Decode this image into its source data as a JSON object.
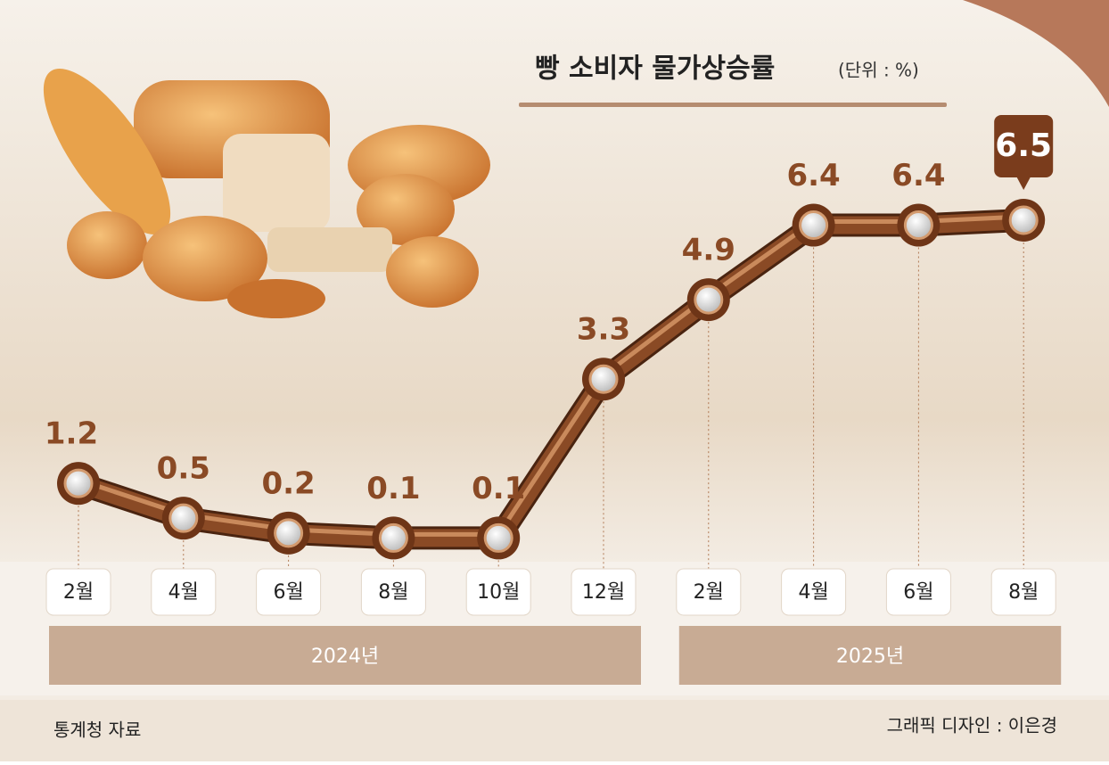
{
  "chart_data": {
    "type": "line",
    "title": "빵 소비자 물가상승률",
    "unit": "(단위 : %)",
    "categories": [
      "2월",
      "4월",
      "6월",
      "8월",
      "10월",
      "12월",
      "2월",
      "4월",
      "6월",
      "8월"
    ],
    "values": [
      1.2,
      0.5,
      0.2,
      0.1,
      0.1,
      3.3,
      4.9,
      6.4,
      6.4,
      6.5
    ],
    "color": "#8a4a25",
    "year_groups": [
      "2024년",
      "2025년"
    ],
    "source": "통계청 자료",
    "credit": "그래픽 디자인 : 이은경"
  }
}
